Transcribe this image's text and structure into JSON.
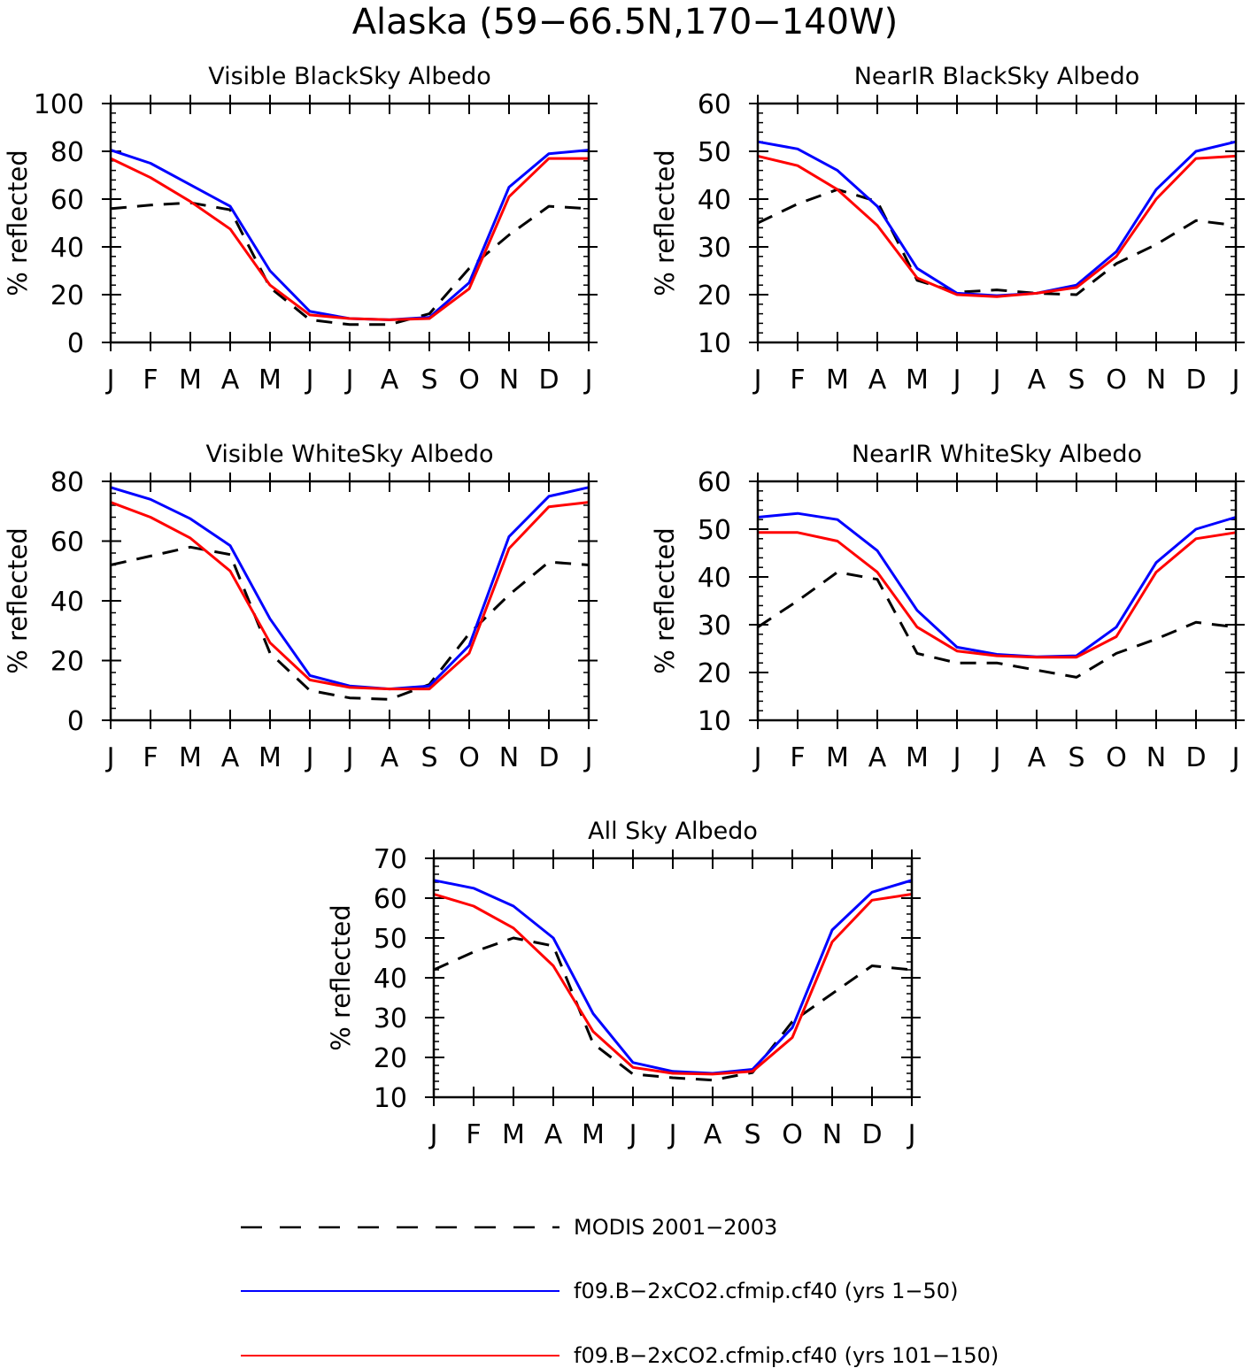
{
  "figure_title": "Alaska (59−66.5N,170−140W)",
  "month_labels": [
    "J",
    "F",
    "M",
    "A",
    "M",
    "J",
    "J",
    "A",
    "S",
    "O",
    "N",
    "D",
    "J"
  ],
  "legend": [
    {
      "label": "MODIS 2001−2003",
      "color": "#000000",
      "style": "dashed"
    },
    {
      "label": "f09.B−2xCO2.cfmip.cf40 (yrs 1−50)",
      "color": "#0000ff",
      "style": "solid"
    },
    {
      "label": "f09.B−2xCO2.cfmip.cf40 (yrs 101−150)",
      "color": "#ff0000",
      "style": "solid"
    }
  ],
  "chart_data": [
    {
      "type": "line",
      "title": "Visible BlackSky Albedo",
      "ylabel": "% reflected",
      "ylim": [
        0,
        100
      ],
      "yticks": [
        0,
        20,
        40,
        60,
        80,
        100
      ],
      "categories": [
        "J",
        "F",
        "M",
        "A",
        "M",
        "J",
        "J",
        "A",
        "S",
        "O",
        "N",
        "D",
        "J"
      ],
      "series": [
        {
          "name": "MODIS 2001−2003",
          "values": [
            56,
            57.5,
            58.5,
            55.5,
            23,
            9.5,
            7.5,
            7.5,
            12,
            31,
            45,
            57,
            56
          ]
        },
        {
          "name": "f09.B−2xCO2.cfmip.cf40 (yrs 1−50)",
          "values": [
            80.5,
            75,
            66,
            57,
            30,
            13,
            10,
            9.5,
            10.5,
            25,
            65,
            79,
            80.5
          ]
        },
        {
          "name": "f09.B−2xCO2.cfmip.cf40 (yrs 101−150)",
          "values": [
            77,
            69,
            59,
            47.5,
            24,
            11.5,
            10,
            9.5,
            10,
            22.5,
            61,
            77,
            77
          ]
        }
      ]
    },
    {
      "type": "line",
      "title": "NearIR BlackSky Albedo",
      "ylabel": "% reflected",
      "ylim": [
        10,
        60
      ],
      "yticks": [
        10,
        20,
        30,
        40,
        50,
        60
      ],
      "categories": [
        "J",
        "F",
        "M",
        "A",
        "M",
        "J",
        "J",
        "A",
        "S",
        "O",
        "N",
        "D",
        "J"
      ],
      "series": [
        {
          "name": "MODIS 2001−2003",
          "values": [
            35,
            39,
            42,
            39.5,
            23,
            20.5,
            21,
            20.3,
            20,
            26.5,
            30.5,
            35.5,
            34.5
          ]
        },
        {
          "name": "f09.B−2xCO2.cfmip.cf40 (yrs 1−50)",
          "values": [
            52,
            50.5,
            46,
            38.5,
            25.5,
            20.3,
            19.8,
            20.3,
            22,
            29,
            42,
            50,
            52
          ]
        },
        {
          "name": "f09.B−2xCO2.cfmip.cf40 (yrs 101−150)",
          "values": [
            49,
            47,
            42,
            34.5,
            23.5,
            20,
            19.6,
            20.3,
            21.5,
            28,
            40,
            48.5,
            49
          ]
        }
      ]
    },
    {
      "type": "line",
      "title": "Visible WhiteSky Albedo",
      "ylabel": "% reflected",
      "ylim": [
        0,
        80
      ],
      "yticks": [
        0,
        20,
        40,
        60,
        80
      ],
      "categories": [
        "J",
        "F",
        "M",
        "A",
        "M",
        "J",
        "J",
        "A",
        "S",
        "O",
        "N",
        "D",
        "J"
      ],
      "series": [
        {
          "name": "MODIS 2001−2003",
          "values": [
            52,
            55,
            58,
            55.5,
            22.5,
            10,
            7.5,
            7,
            12,
            29,
            42,
            53,
            52
          ]
        },
        {
          "name": "f09.B−2xCO2.cfmip.cf40 (yrs 1−50)",
          "values": [
            78,
            74,
            67.5,
            58.5,
            34,
            15,
            11.5,
            10.5,
            11.5,
            25,
            61.5,
            75,
            78
          ]
        },
        {
          "name": "f09.B−2xCO2.cfmip.cf40 (yrs 101−150)",
          "values": [
            73,
            68,
            61,
            50,
            26,
            13.5,
            11,
            10.5,
            10.5,
            22.5,
            57.5,
            71.5,
            73
          ]
        }
      ]
    },
    {
      "type": "line",
      "title": "NearIR WhiteSky Albedo",
      "ylabel": "% reflected",
      "ylim": [
        10,
        60
      ],
      "yticks": [
        10,
        20,
        30,
        40,
        50,
        60
      ],
      "categories": [
        "J",
        "F",
        "M",
        "A",
        "M",
        "J",
        "J",
        "A",
        "S",
        "O",
        "N",
        "D",
        "J"
      ],
      "series": [
        {
          "name": "MODIS 2001−2003",
          "values": [
            29.5,
            35,
            41,
            39.5,
            24,
            22,
            22,
            20.5,
            19,
            24,
            27,
            30.5,
            29.5
          ]
        },
        {
          "name": "f09.B−2xCO2.cfmip.cf40 (yrs 1−50)",
          "values": [
            52.5,
            53.3,
            52,
            45.5,
            33,
            25.3,
            23.8,
            23.3,
            23.5,
            29.5,
            43,
            50,
            52.5
          ]
        },
        {
          "name": "f09.B−2xCO2.cfmip.cf40 (yrs 101−150)",
          "values": [
            49.3,
            49.3,
            47.5,
            41,
            29.5,
            24.5,
            23.5,
            23.2,
            23.2,
            27.5,
            41,
            48,
            49.3
          ]
        }
      ]
    },
    {
      "type": "line",
      "title": "All Sky Albedo",
      "ylabel": "% reflected",
      "ylim": [
        10,
        70
      ],
      "yticks": [
        10,
        20,
        30,
        40,
        50,
        60,
        70
      ],
      "categories": [
        "J",
        "F",
        "M",
        "A",
        "M",
        "J",
        "J",
        "A",
        "S",
        "O",
        "N",
        "D",
        "J"
      ],
      "series": [
        {
          "name": "MODIS 2001−2003",
          "values": [
            42,
            46.5,
            50,
            48,
            23.5,
            15.8,
            14.9,
            14.3,
            16.2,
            29,
            36,
            43,
            42
          ]
        },
        {
          "name": "f09.B−2xCO2.cfmip.cf40 (yrs 1−50)",
          "values": [
            64.5,
            62.5,
            58,
            50,
            31,
            18.7,
            16.5,
            16,
            17,
            27.5,
            52,
            61.5,
            64.5
          ]
        },
        {
          "name": "f09.B−2xCO2.cfmip.cf40 (yrs 101−150)",
          "values": [
            61,
            58,
            52.5,
            43,
            26.5,
            17.5,
            16,
            15.8,
            16.5,
            25,
            49,
            59.5,
            61
          ]
        }
      ]
    }
  ]
}
